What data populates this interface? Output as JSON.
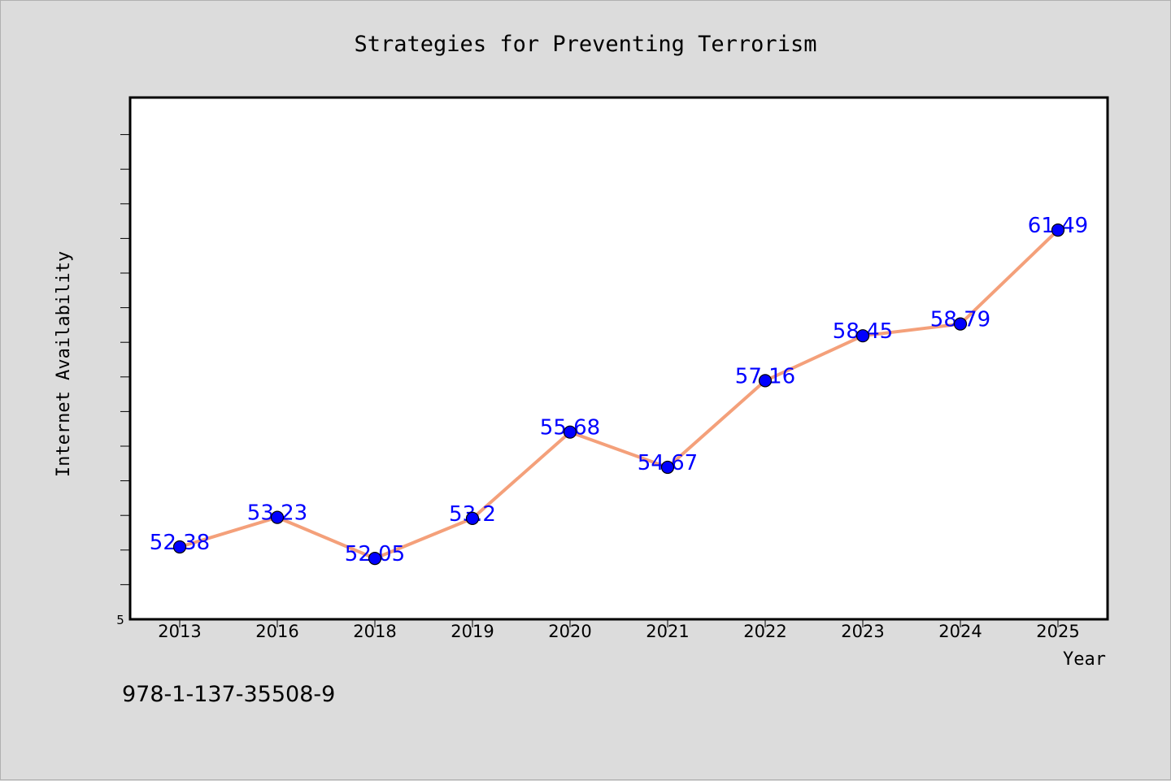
{
  "chart_data": {
    "type": "line",
    "title": "Strategies for Preventing Terrorism",
    "xlabel": "Year",
    "ylabel": "Internet Availability",
    "categories": [
      "2013",
      "2016",
      "2018",
      "2019",
      "2020",
      "2021",
      "2022",
      "2023",
      "2024",
      "2025"
    ],
    "series": [
      {
        "values": [
          52.38,
          53.23,
          52.05,
          53.2,
          55.68,
          54.67,
          57.16,
          58.45,
          58.79,
          61.49
        ],
        "data_labels": [
          "52.38",
          "53.23",
          "52.05",
          "53.2",
          "55.68",
          "54.67",
          "57.16",
          "58.45",
          "58.79",
          "61.49"
        ]
      }
    ],
    "ylim": [
      50.3,
      65.3
    ],
    "y_tick_labels": [
      "5"
    ],
    "grid": false,
    "legend": "none",
    "colors": {
      "line": "#f4a07a",
      "marker": "#0000ff",
      "data_label": "#0000ff",
      "plot_background": "#ffffff",
      "page_background": "#dcdcdc"
    }
  },
  "footnote": "978-1-137-35508-9"
}
